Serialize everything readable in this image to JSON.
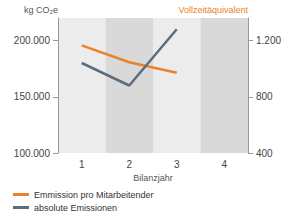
{
  "chart_data": {
    "type": "line",
    "x_label": "Bilanzjahr",
    "y_label": "kg CO₂e",
    "y2_label": "Vollzeitäquivalent",
    "categories": [
      "1",
      "2",
      "3",
      "4"
    ],
    "series": [
      {
        "name": "Emmission pro Mitarbeitender",
        "color": "#e8832a",
        "axis": "y2",
        "values": [
          1165,
          1045,
          970,
          null
        ]
      },
      {
        "name": "absolute Emissionen",
        "color": "#5b6e7f",
        "values": [
          180000,
          160000,
          210000,
          null
        ]
      }
    ],
    "ylim": [
      100000,
      220000
    ],
    "yticks": [
      {
        "value": 100000,
        "label": "100.000"
      },
      {
        "value": 150000,
        "label": "150.000"
      },
      {
        "value": 200000,
        "label": "200.000"
      }
    ],
    "y2lim": [
      400,
      1360
    ],
    "y2ticks": [
      400,
      800,
      {
        "value": 1200,
        "label": "1.200"
      }
    ],
    "legend": "bottom"
  }
}
